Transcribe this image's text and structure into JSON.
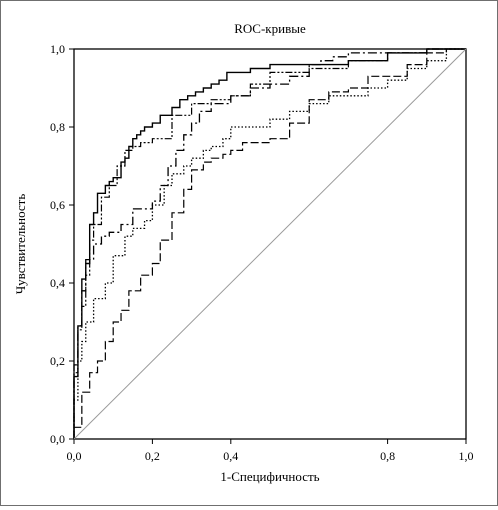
{
  "chart_data": {
    "type": "line",
    "title": "ROC-кривые",
    "xlabel": "1-Специфичность",
    "ylabel": "Чувствительность",
    "xlim": [
      0,
      1
    ],
    "ylim": [
      0,
      1
    ],
    "x_ticks": [
      "0,0",
      "0,2",
      "0,4",
      "0,8",
      "1,0"
    ],
    "y_ticks": [
      "0,0",
      "0,2",
      "0,4",
      "0,6",
      "0,8",
      "1,0"
    ],
    "grid": false,
    "series": [
      {
        "style": "solid",
        "x": [
          0,
          0.01,
          0.02,
          0.03,
          0.04,
          0.05,
          0.06,
          0.08,
          0.09,
          0.1,
          0.12,
          0.13,
          0.14,
          0.15,
          0.16,
          0.17,
          0.18,
          0.19,
          0.2,
          0.22,
          0.25,
          0.27,
          0.29,
          0.31,
          0.33,
          0.35,
          0.37,
          0.39,
          0.4,
          0.45,
          0.5,
          0.55,
          0.6,
          0.7,
          0.8,
          0.9,
          1.0
        ],
        "y": [
          0,
          0.16,
          0.29,
          0.41,
          0.45,
          0.55,
          0.58,
          0.63,
          0.65,
          0.66,
          0.67,
          0.71,
          0.72,
          0.75,
          0.77,
          0.78,
          0.79,
          0.8,
          0.8,
          0.81,
          0.83,
          0.85,
          0.87,
          0.88,
          0.89,
          0.9,
          0.91,
          0.92,
          0.94,
          0.94,
          0.95,
          0.96,
          0.96,
          0.96,
          0.97,
          0.99,
          1.0
        ]
      },
      {
        "style": "dash-dot",
        "x": [
          0,
          0.01,
          0.02,
          0.03,
          0.05,
          0.07,
          0.09,
          0.12,
          0.15,
          0.2,
          0.22,
          0.24,
          0.26,
          0.28,
          0.3,
          0.32,
          0.35,
          0.4,
          0.45,
          0.5,
          0.55,
          0.6,
          0.63,
          0.66,
          0.7,
          0.8,
          0.9,
          1.0
        ],
        "y": [
          0,
          0.19,
          0.29,
          0.38,
          0.46,
          0.5,
          0.52,
          0.53,
          0.55,
          0.59,
          0.61,
          0.65,
          0.7,
          0.74,
          0.78,
          0.81,
          0.84,
          0.86,
          0.88,
          0.9,
          0.91,
          0.93,
          0.96,
          0.97,
          0.98,
          0.99,
          0.99,
          1.0
        ]
      },
      {
        "style": "dash-dot-dot",
        "x": [
          0,
          0.01,
          0.02,
          0.03,
          0.04,
          0.05,
          0.07,
          0.09,
          0.11,
          0.13,
          0.15,
          0.17,
          0.2,
          0.25,
          0.3,
          0.35,
          0.4,
          0.45,
          0.5,
          0.6,
          0.7,
          0.8,
          0.9,
          1.0
        ],
        "y": [
          0,
          0.17,
          0.28,
          0.34,
          0.42,
          0.51,
          0.55,
          0.62,
          0.65,
          0.7,
          0.74,
          0.75,
          0.76,
          0.77,
          0.83,
          0.86,
          0.87,
          0.88,
          0.91,
          0.94,
          0.95,
          0.97,
          0.99,
          1.0
        ]
      },
      {
        "style": "dotted",
        "x": [
          0,
          0.01,
          0.02,
          0.03,
          0.05,
          0.08,
          0.1,
          0.13,
          0.15,
          0.18,
          0.2,
          0.23,
          0.25,
          0.28,
          0.3,
          0.33,
          0.35,
          0.38,
          0.4,
          0.45,
          0.5,
          0.55,
          0.6,
          0.65,
          0.7,
          0.75,
          0.8,
          0.85,
          0.9,
          0.95,
          1.0
        ],
        "y": [
          0,
          0.1,
          0.2,
          0.25,
          0.3,
          0.36,
          0.4,
          0.47,
          0.52,
          0.54,
          0.56,
          0.6,
          0.65,
          0.68,
          0.7,
          0.72,
          0.74,
          0.75,
          0.77,
          0.8,
          0.8,
          0.82,
          0.84,
          0.86,
          0.88,
          0.88,
          0.9,
          0.92,
          0.95,
          0.97,
          1.0
        ]
      },
      {
        "style": "long-dash",
        "x": [
          0,
          0.02,
          0.04,
          0.06,
          0.08,
          0.1,
          0.12,
          0.14,
          0.17,
          0.2,
          0.22,
          0.25,
          0.28,
          0.3,
          0.33,
          0.35,
          0.38,
          0.4,
          0.43,
          0.47,
          0.5,
          0.55,
          0.6,
          0.65,
          0.7,
          0.75,
          0.8,
          0.85,
          0.9,
          0.95,
          1.0
        ],
        "y": [
          0,
          0.03,
          0.12,
          0.17,
          0.2,
          0.25,
          0.3,
          0.33,
          0.38,
          0.42,
          0.45,
          0.51,
          0.58,
          0.64,
          0.69,
          0.71,
          0.72,
          0.73,
          0.74,
          0.76,
          0.76,
          0.77,
          0.81,
          0.87,
          0.89,
          0.9,
          0.93,
          0.93,
          0.96,
          0.99,
          1.0
        ]
      },
      {
        "style": "reference",
        "x": [
          0,
          1
        ],
        "y": [
          0,
          1
        ]
      }
    ]
  }
}
